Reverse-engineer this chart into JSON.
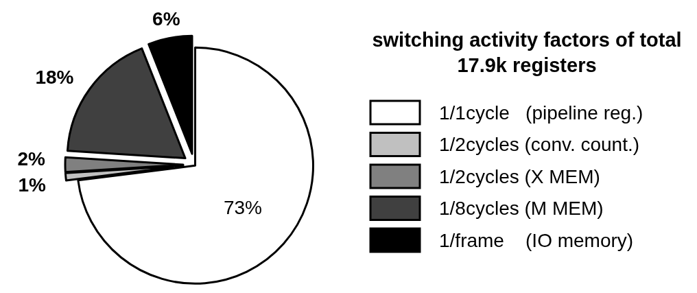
{
  "chart_data": {
    "type": "pie",
    "legend_title": "switching activity factors of total 17.9k registers",
    "legend": "right",
    "categories": [
      "1/1cycle   (pipeline reg.)",
      "1/2cycles (conv. count.)",
      "1/2cycles (X MEM)",
      "1/8cycles (M MEM)",
      "1/frame    (IO memory)"
    ],
    "values": [
      73,
      1,
      2,
      18,
      6
    ],
    "value_labels": [
      "73%",
      "1%",
      "2%",
      "18%",
      "6%"
    ],
    "colors": [
      "#ffffff",
      "#c0c0c0",
      "#808080",
      "#404040",
      "#000000"
    ]
  }
}
